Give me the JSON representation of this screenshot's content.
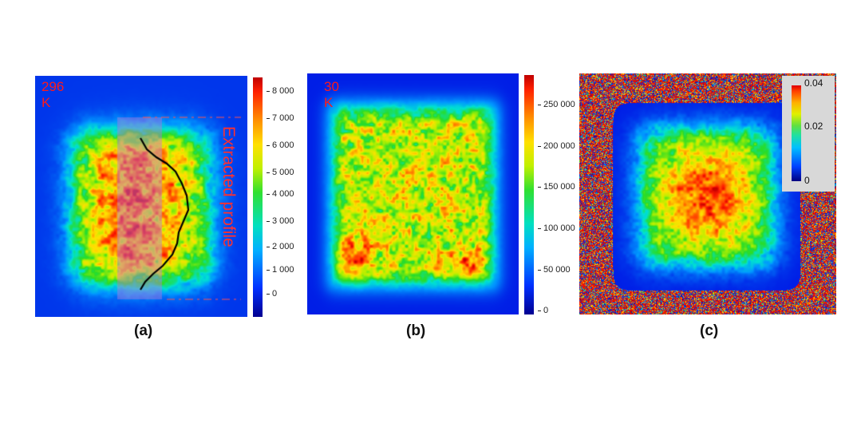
{
  "panels": [
    {
      "id": "a",
      "caption": "(a)",
      "temperature": "296 K",
      "annotation": "Extracted profile",
      "colorbar_ticks": [
        "8 000",
        "7 000",
        "6 000",
        "5 000",
        "4 000",
        "3 000",
        "2 000",
        "1 000",
        "0"
      ]
    },
    {
      "id": "b",
      "caption": "(b)",
      "temperature": "30 K",
      "colorbar_ticks": [
        "250 000",
        "200 000",
        "150 000",
        "100 000",
        "50 000",
        "0"
      ]
    },
    {
      "id": "c",
      "caption": "(c)",
      "colorbar_ticks": [
        "0.04",
        "0.02",
        "0"
      ]
    }
  ],
  "colors": {
    "label_red": "#ff1a1a",
    "background_blue": "#1030d0"
  }
}
